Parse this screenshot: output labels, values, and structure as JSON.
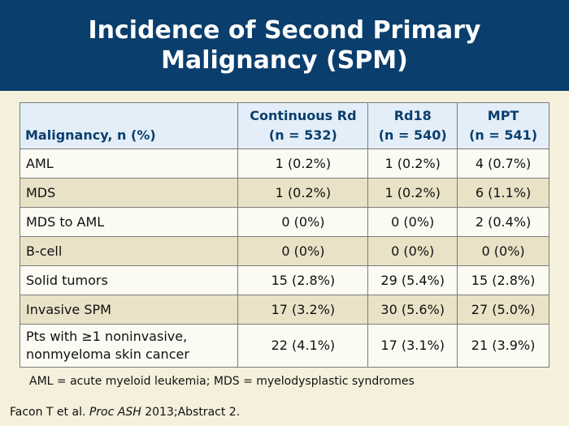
{
  "slide": {
    "title": "Incidence of Second Primary Malignancy (SPM)"
  },
  "table": {
    "headers": [
      {
        "line1": "",
        "line2": "Malignancy, n (%)"
      },
      {
        "line1": "Continuous Rd",
        "line2": "(n = 532)"
      },
      {
        "line1": "Rd18",
        "line2": "(n = 540)"
      },
      {
        "line1": "MPT",
        "line2": "(n = 541)"
      }
    ],
    "rows": [
      {
        "label": "AML",
        "label_line2": "",
        "values": [
          "1 (0.2%)",
          "1 (0.2%)",
          "4 (0.7%)"
        ]
      },
      {
        "label": "MDS",
        "label_line2": "",
        "values": [
          "1 (0.2%)",
          "1 (0.2%)",
          "6 (1.1%)"
        ]
      },
      {
        "label": "MDS to AML",
        "label_line2": "",
        "values": [
          "0 (0%)",
          "0 (0%)",
          "2 (0.4%)"
        ]
      },
      {
        "label": "B-cell",
        "label_line2": "",
        "values": [
          "0 (0%)",
          "0 (0%)",
          "0 (0%)"
        ]
      },
      {
        "label": "Solid tumors",
        "label_line2": "",
        "values": [
          "15 (2.8%)",
          "29 (5.4%)",
          "15 (2.8%)"
        ]
      },
      {
        "label": "Invasive SPM",
        "label_line2": "",
        "values": [
          "17 (3.2%)",
          "30 (5.6%)",
          "27 (5.0%)"
        ]
      },
      {
        "label": "Pts with ≥1 noninvasive,",
        "label_line2": "nonmyeloma skin cancer",
        "values": [
          "22 (4.1%)",
          "17 (3.1%)",
          "21 (3.9%)"
        ]
      }
    ]
  },
  "footnote": "AML = acute myeloid leukemia; MDS = myelodysplastic syndromes",
  "citation": {
    "authors": "Facon T et al.",
    "journal": "Proc ASH",
    "details": "2013;Abstract 2."
  }
}
